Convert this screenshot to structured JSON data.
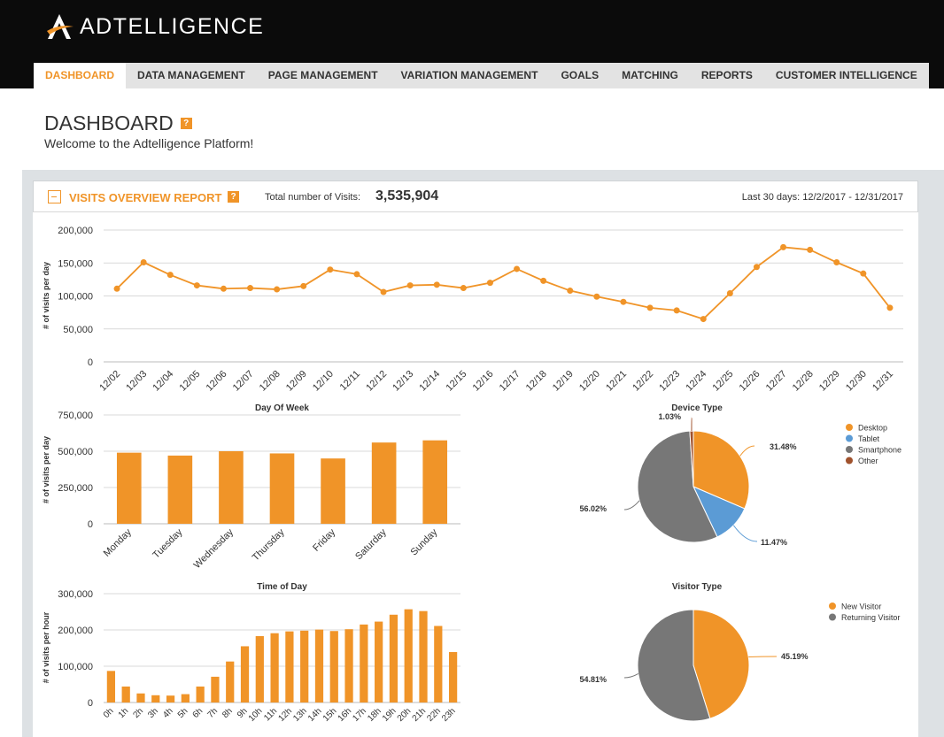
{
  "app": {
    "brand": "ADTELLIGENCE"
  },
  "nav": {
    "tabs": [
      {
        "label": "DASHBOARD",
        "active": true
      },
      {
        "label": "DATA MANAGEMENT",
        "active": false
      },
      {
        "label": "PAGE MANAGEMENT",
        "active": false
      },
      {
        "label": "VARIATION MANAGEMENT",
        "active": false
      },
      {
        "label": "GOALS",
        "active": false
      },
      {
        "label": "MATCHING",
        "active": false
      },
      {
        "label": "REPORTS",
        "active": false
      },
      {
        "label": "CUSTOMER INTELLIGENCE",
        "active": false
      }
    ]
  },
  "page": {
    "title": "DASHBOARD",
    "help": "?",
    "welcome": "Welcome to the Adtelligence Platform!"
  },
  "report": {
    "title": "VISITS OVERVIEW REPORT",
    "help": "?",
    "total_label": "Total number of Visits:",
    "total_value": "3,535,904",
    "date_range": "Last 30 days: 12/2/2017 - 12/31/2017"
  },
  "colors": {
    "accent": "#f09428",
    "tablet": "#5b9bd5",
    "smartphone": "#777777",
    "other": "#a0522d",
    "grid": "#d9d9d9"
  },
  "chart_data": [
    {
      "type": "line",
      "ylabel": "# of visits per day",
      "ylim": [
        0,
        200000
      ],
      "yticks": [
        "0",
        "50,000",
        "100,000",
        "150,000",
        "200,000"
      ],
      "categories": [
        "12/02",
        "12/03",
        "12/04",
        "12/05",
        "12/06",
        "12/07",
        "12/08",
        "12/09",
        "12/10",
        "12/11",
        "12/12",
        "12/13",
        "12/14",
        "12/15",
        "12/16",
        "12/17",
        "12/18",
        "12/19",
        "12/20",
        "12/21",
        "12/22",
        "12/23",
        "12/24",
        "12/25",
        "12/26",
        "12/27",
        "12/28",
        "12/29",
        "12/30",
        "12/31"
      ],
      "values": [
        111000,
        151000,
        132000,
        116000,
        111000,
        112000,
        110000,
        115000,
        140000,
        133000,
        106000,
        116000,
        117000,
        112000,
        120000,
        141000,
        123000,
        108000,
        99000,
        91000,
        82000,
        78000,
        65000,
        104000,
        144000,
        174000,
        170000,
        151000,
        134000,
        82000
      ],
      "grid": true
    },
    {
      "type": "bar",
      "title": "Day Of Week",
      "ylabel": "# of visits per day",
      "ylim": [
        0,
        750000
      ],
      "yticks": [
        "0",
        "250,000",
        "500,000",
        "750,000"
      ],
      "categories": [
        "Monday",
        "Tuesday",
        "Wednesday",
        "Thursday",
        "Friday",
        "Saturday",
        "Sunday"
      ],
      "values": [
        490000,
        470000,
        500000,
        485000,
        450000,
        560000,
        575000
      ],
      "grid": true
    },
    {
      "type": "pie",
      "title": "Device Type",
      "slices": [
        {
          "label": "Desktop",
          "value": 31.48,
          "display": "31.48%",
          "color": "#f09428"
        },
        {
          "label": "Tablet",
          "value": 11.47,
          "display": "11.47%",
          "color": "#5b9bd5"
        },
        {
          "label": "Smartphone",
          "value": 56.02,
          "display": "56.02%",
          "color": "#777777"
        },
        {
          "label": "Other",
          "value": 1.03,
          "display": "1.03%",
          "color": "#a0522d"
        }
      ],
      "legend": "top-right"
    },
    {
      "type": "bar",
      "title": "Time of Day",
      "ylabel": "# of visits per hour",
      "ylim": [
        0,
        300000
      ],
      "yticks": [
        "0",
        "100,000",
        "200,000",
        "300,000"
      ],
      "categories": [
        "0h",
        "1h",
        "2h",
        "3h",
        "4h",
        "5h",
        "6h",
        "7h",
        "8h",
        "9h",
        "10h",
        "11h",
        "12h",
        "13h",
        "14h",
        "15h",
        "16h",
        "17h",
        "18h",
        "19h",
        "20h",
        "21h",
        "22h",
        "23h"
      ],
      "values": [
        87000,
        44000,
        25000,
        20000,
        19000,
        23000,
        44000,
        71000,
        113000,
        155000,
        183000,
        191000,
        196000,
        198000,
        201000,
        197000,
        202000,
        215000,
        223000,
        242000,
        257000,
        252000,
        211000,
        139000
      ],
      "grid": true
    },
    {
      "type": "pie",
      "title": "Visitor Type",
      "slices": [
        {
          "label": "New Visitor",
          "value": 45.19,
          "display": "45.19%",
          "color": "#f09428"
        },
        {
          "label": "Returning Visitor",
          "value": 54.81,
          "display": "54.81%",
          "color": "#777777"
        }
      ],
      "legend": "top-right"
    }
  ]
}
